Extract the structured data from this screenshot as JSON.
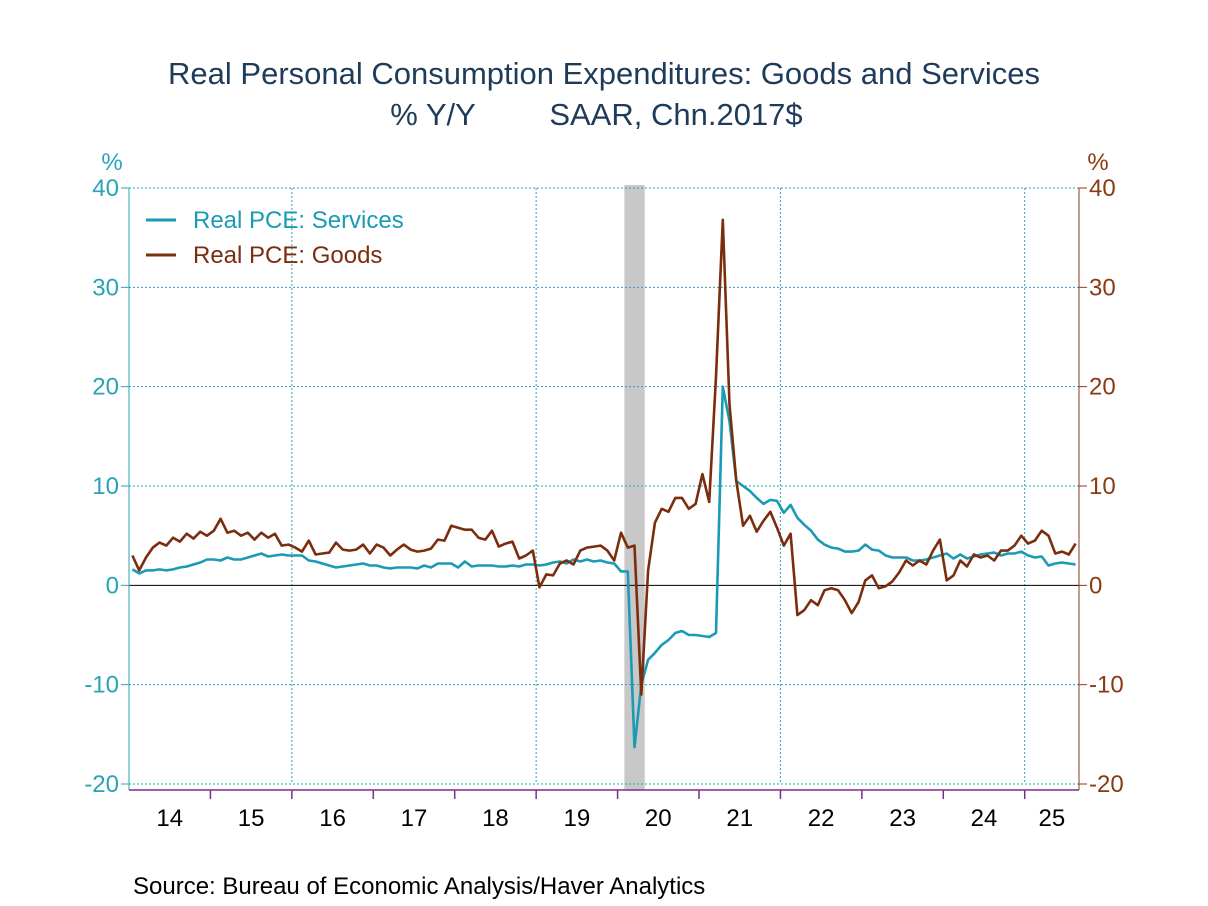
{
  "chart_data": {
    "type": "line",
    "title_line1": "Real Personal Consumption Expenditures: Goods and Services",
    "title_line2_left": "% Y/Y",
    "title_line2_right": "SAAR, Chn.2017$",
    "left_axis_unit": "%",
    "right_axis_unit": "%",
    "ylim": [
      -20,
      40
    ],
    "yticks": [
      40,
      30,
      20,
      10,
      0,
      -10,
      -20
    ],
    "year_labels": [
      "14",
      "15",
      "16",
      "17",
      "18",
      "19",
      "20",
      "21",
      "22",
      "23",
      "24",
      "25"
    ],
    "x_start": "2014-01",
    "x_end": "2025-08",
    "recession": {
      "start": "2020-02",
      "end": "2020-04"
    },
    "grid": true,
    "legend_position": "top-left",
    "source": "Source:  Bureau of Economic Analysis/Haver Analytics",
    "colors": {
      "services": "#1a9bb5",
      "goods": "#7a2e0e",
      "left_axis": "#2aa3b8",
      "right_axis": "#8a3a12",
      "bottom_axis": "#7b2d8e",
      "grid": "#2aa3b8",
      "recession": "#c8c8c8",
      "title": "#1f3b5a"
    },
    "series": [
      {
        "name": "Real PCE: Services",
        "key": "services",
        "points": [
          [
            "2014-01",
            1.6
          ],
          [
            "2014-02",
            1.2
          ],
          [
            "2014-03",
            1.5
          ],
          [
            "2014-04",
            1.5
          ],
          [
            "2014-05",
            1.6
          ],
          [
            "2014-06",
            1.5
          ],
          [
            "2014-07",
            1.6
          ],
          [
            "2014-08",
            1.8
          ],
          [
            "2014-09",
            1.9
          ],
          [
            "2014-10",
            2.1
          ],
          [
            "2014-11",
            2.3
          ],
          [
            "2014-12",
            2.6
          ],
          [
            "2015-01",
            2.6
          ],
          [
            "2015-02",
            2.5
          ],
          [
            "2015-03",
            2.8
          ],
          [
            "2015-04",
            2.6
          ],
          [
            "2015-05",
            2.6
          ],
          [
            "2015-06",
            2.8
          ],
          [
            "2015-07",
            3.0
          ],
          [
            "2015-08",
            3.2
          ],
          [
            "2015-09",
            2.9
          ],
          [
            "2015-10",
            3.0
          ],
          [
            "2015-11",
            3.1
          ],
          [
            "2015-12",
            3.0
          ],
          [
            "2016-01",
            3.0
          ],
          [
            "2016-02",
            3.0
          ],
          [
            "2016-03",
            2.5
          ],
          [
            "2016-04",
            2.4
          ],
          [
            "2016-05",
            2.2
          ],
          [
            "2016-06",
            2.0
          ],
          [
            "2016-07",
            1.8
          ],
          [
            "2016-08",
            1.9
          ],
          [
            "2016-09",
            2.0
          ],
          [
            "2016-10",
            2.1
          ],
          [
            "2016-11",
            2.2
          ],
          [
            "2016-12",
            2.0
          ],
          [
            "2017-01",
            2.0
          ],
          [
            "2017-02",
            1.8
          ],
          [
            "2017-03",
            1.7
          ],
          [
            "2017-04",
            1.8
          ],
          [
            "2017-05",
            1.8
          ],
          [
            "2017-06",
            1.8
          ],
          [
            "2017-07",
            1.7
          ],
          [
            "2017-08",
            2.0
          ],
          [
            "2017-09",
            1.8
          ],
          [
            "2017-10",
            2.2
          ],
          [
            "2017-11",
            2.2
          ],
          [
            "2017-12",
            2.2
          ],
          [
            "2018-01",
            1.8
          ],
          [
            "2018-02",
            2.4
          ],
          [
            "2018-03",
            1.9
          ],
          [
            "2018-04",
            2.0
          ],
          [
            "2018-05",
            2.0
          ],
          [
            "2018-06",
            2.0
          ],
          [
            "2018-07",
            1.9
          ],
          [
            "2018-08",
            1.9
          ],
          [
            "2018-09",
            2.0
          ],
          [
            "2018-10",
            1.9
          ],
          [
            "2018-11",
            2.1
          ],
          [
            "2018-12",
            2.1
          ],
          [
            "2019-01",
            2.0
          ],
          [
            "2019-02",
            2.1
          ],
          [
            "2019-03",
            2.3
          ],
          [
            "2019-04",
            2.4
          ],
          [
            "2019-05",
            2.2
          ],
          [
            "2019-06",
            2.6
          ],
          [
            "2019-07",
            2.4
          ],
          [
            "2019-08",
            2.6
          ],
          [
            "2019-09",
            2.4
          ],
          [
            "2019-10",
            2.5
          ],
          [
            "2019-11",
            2.3
          ],
          [
            "2019-12",
            2.2
          ],
          [
            "2020-01",
            1.4
          ],
          [
            "2020-02",
            1.4
          ],
          [
            "2020-03",
            -16.3
          ],
          [
            "2020-04",
            -10.0
          ],
          [
            "2020-05",
            -7.5
          ],
          [
            "2020-06",
            -6.8
          ],
          [
            "2020-07",
            -6.0
          ],
          [
            "2020-08",
            -5.5
          ],
          [
            "2020-09",
            -4.8
          ],
          [
            "2020-10",
            -4.6
          ],
          [
            "2020-11",
            -5.0
          ],
          [
            "2020-12",
            -5.0
          ],
          [
            "2021-01",
            -5.1
          ],
          [
            "2021-02",
            -5.2
          ],
          [
            "2021-03",
            -4.8
          ],
          [
            "2021-04",
            20.0
          ],
          [
            "2021-05",
            16.5
          ],
          [
            "2021-06",
            10.5
          ],
          [
            "2021-07",
            10.0
          ],
          [
            "2021-08",
            9.5
          ],
          [
            "2021-09",
            8.8
          ],
          [
            "2021-10",
            8.2
          ],
          [
            "2021-11",
            8.6
          ],
          [
            "2021-12",
            8.5
          ],
          [
            "2022-01",
            7.3
          ],
          [
            "2022-02",
            8.1
          ],
          [
            "2022-03",
            6.8
          ],
          [
            "2022-04",
            6.1
          ],
          [
            "2022-05",
            5.5
          ],
          [
            "2022-06",
            4.6
          ],
          [
            "2022-07",
            4.1
          ],
          [
            "2022-08",
            3.8
          ],
          [
            "2022-09",
            3.7
          ],
          [
            "2022-10",
            3.4
          ],
          [
            "2022-11",
            3.4
          ],
          [
            "2022-12",
            3.5
          ],
          [
            "2023-01",
            4.1
          ],
          [
            "2023-02",
            3.6
          ],
          [
            "2023-03",
            3.5
          ],
          [
            "2023-04",
            3.0
          ],
          [
            "2023-05",
            2.8
          ],
          [
            "2023-06",
            2.8
          ],
          [
            "2023-07",
            2.8
          ],
          [
            "2023-08",
            2.5
          ],
          [
            "2023-09",
            2.5
          ],
          [
            "2023-10",
            2.6
          ],
          [
            "2023-11",
            2.8
          ],
          [
            "2023-12",
            3.0
          ],
          [
            "2024-01",
            3.2
          ],
          [
            "2024-02",
            2.7
          ],
          [
            "2024-03",
            3.1
          ],
          [
            "2024-04",
            2.7
          ],
          [
            "2024-05",
            2.9
          ],
          [
            "2024-06",
            3.1
          ],
          [
            "2024-07",
            3.2
          ],
          [
            "2024-08",
            3.3
          ],
          [
            "2024-09",
            3.0
          ],
          [
            "2024-10",
            3.2
          ],
          [
            "2024-11",
            3.2
          ],
          [
            "2024-12",
            3.4
          ],
          [
            "2025-01",
            3.0
          ],
          [
            "2025-02",
            2.8
          ],
          [
            "2025-03",
            2.9
          ],
          [
            "2025-04",
            2.0
          ],
          [
            "2025-05",
            2.2
          ],
          [
            "2025-06",
            2.3
          ],
          [
            "2025-07",
            2.2
          ],
          [
            "2025-08",
            2.1
          ]
        ]
      },
      {
        "name": "Real PCE: Goods",
        "key": "goods",
        "points": [
          [
            "2014-01",
            3.0
          ],
          [
            "2014-02",
            1.5
          ],
          [
            "2014-03",
            2.8
          ],
          [
            "2014-04",
            3.8
          ],
          [
            "2014-05",
            4.3
          ],
          [
            "2014-06",
            4.0
          ],
          [
            "2014-07",
            4.8
          ],
          [
            "2014-08",
            4.4
          ],
          [
            "2014-09",
            5.2
          ],
          [
            "2014-10",
            4.7
          ],
          [
            "2014-11",
            5.4
          ],
          [
            "2014-12",
            5.0
          ],
          [
            "2015-01",
            5.5
          ],
          [
            "2015-02",
            6.7
          ],
          [
            "2015-03",
            5.3
          ],
          [
            "2015-04",
            5.5
          ],
          [
            "2015-05",
            5.0
          ],
          [
            "2015-06",
            5.3
          ],
          [
            "2015-07",
            4.6
          ],
          [
            "2015-08",
            5.3
          ],
          [
            "2015-09",
            4.8
          ],
          [
            "2015-10",
            5.2
          ],
          [
            "2015-11",
            4.0
          ],
          [
            "2015-12",
            4.1
          ],
          [
            "2016-01",
            3.8
          ],
          [
            "2016-02",
            3.4
          ],
          [
            "2016-03",
            4.5
          ],
          [
            "2016-04",
            3.1
          ],
          [
            "2016-05",
            3.2
          ],
          [
            "2016-06",
            3.3
          ],
          [
            "2016-07",
            4.3
          ],
          [
            "2016-08",
            3.6
          ],
          [
            "2016-09",
            3.5
          ],
          [
            "2016-10",
            3.6
          ],
          [
            "2016-11",
            4.1
          ],
          [
            "2016-12",
            3.2
          ],
          [
            "2017-01",
            4.1
          ],
          [
            "2017-02",
            3.8
          ],
          [
            "2017-03",
            3.0
          ],
          [
            "2017-04",
            3.6
          ],
          [
            "2017-05",
            4.1
          ],
          [
            "2017-06",
            3.6
          ],
          [
            "2017-07",
            3.4
          ],
          [
            "2017-08",
            3.5
          ],
          [
            "2017-09",
            3.7
          ],
          [
            "2017-10",
            4.6
          ],
          [
            "2017-11",
            4.5
          ],
          [
            "2017-12",
            6.0
          ],
          [
            "2018-01",
            5.8
          ],
          [
            "2018-02",
            5.6
          ],
          [
            "2018-03",
            5.6
          ],
          [
            "2018-04",
            4.8
          ],
          [
            "2018-05",
            4.6
          ],
          [
            "2018-06",
            5.5
          ],
          [
            "2018-07",
            3.9
          ],
          [
            "2018-08",
            4.2
          ],
          [
            "2018-09",
            4.4
          ],
          [
            "2018-10",
            2.7
          ],
          [
            "2018-11",
            3.0
          ],
          [
            "2018-12",
            3.5
          ],
          [
            "2019-01",
            -0.2
          ],
          [
            "2019-02",
            1.1
          ],
          [
            "2019-03",
            1.0
          ],
          [
            "2019-04",
            2.2
          ],
          [
            "2019-05",
            2.5
          ],
          [
            "2019-06",
            2.1
          ],
          [
            "2019-07",
            3.5
          ],
          [
            "2019-08",
            3.8
          ],
          [
            "2019-09",
            3.9
          ],
          [
            "2019-10",
            4.0
          ],
          [
            "2019-11",
            3.5
          ],
          [
            "2019-12",
            2.5
          ],
          [
            "2020-01",
            5.3
          ],
          [
            "2020-02",
            3.8
          ],
          [
            "2020-03",
            4.0
          ],
          [
            "2020-04",
            -11.0
          ],
          [
            "2020-05",
            1.5
          ],
          [
            "2020-06",
            6.3
          ],
          [
            "2020-07",
            7.7
          ],
          [
            "2020-08",
            7.4
          ],
          [
            "2020-09",
            8.8
          ],
          [
            "2020-10",
            8.8
          ],
          [
            "2020-11",
            7.7
          ],
          [
            "2020-12",
            8.2
          ],
          [
            "2021-01",
            11.2
          ],
          [
            "2021-02",
            8.4
          ],
          [
            "2021-03",
            21.0
          ],
          [
            "2021-04",
            36.8
          ],
          [
            "2021-05",
            18.2
          ],
          [
            "2021-06",
            10.5
          ],
          [
            "2021-07",
            6.0
          ],
          [
            "2021-08",
            7.0
          ],
          [
            "2021-09",
            5.4
          ],
          [
            "2021-10",
            6.5
          ],
          [
            "2021-11",
            7.4
          ],
          [
            "2021-12",
            5.8
          ],
          [
            "2022-01",
            4.0
          ],
          [
            "2022-02",
            5.2
          ],
          [
            "2022-03",
            -3.0
          ],
          [
            "2022-04",
            -2.5
          ],
          [
            "2022-05",
            -1.5
          ],
          [
            "2022-06",
            -2.0
          ],
          [
            "2022-07",
            -0.5
          ],
          [
            "2022-08",
            -0.3
          ],
          [
            "2022-09",
            -0.5
          ],
          [
            "2022-10",
            -1.5
          ],
          [
            "2022-11",
            -2.8
          ],
          [
            "2022-12",
            -1.7
          ],
          [
            "2023-01",
            0.5
          ],
          [
            "2023-02",
            1.0
          ],
          [
            "2023-03",
            -0.3
          ],
          [
            "2023-04",
            -0.1
          ],
          [
            "2023-05",
            0.4
          ],
          [
            "2023-06",
            1.3
          ],
          [
            "2023-07",
            2.5
          ],
          [
            "2023-08",
            2.0
          ],
          [
            "2023-09",
            2.5
          ],
          [
            "2023-10",
            2.1
          ],
          [
            "2023-11",
            3.5
          ],
          [
            "2023-12",
            4.6
          ],
          [
            "2024-01",
            0.5
          ],
          [
            "2024-02",
            1.0
          ],
          [
            "2024-03",
            2.5
          ],
          [
            "2024-04",
            1.9
          ],
          [
            "2024-05",
            3.1
          ],
          [
            "2024-06",
            2.8
          ],
          [
            "2024-07",
            3.0
          ],
          [
            "2024-08",
            2.5
          ],
          [
            "2024-09",
            3.5
          ],
          [
            "2024-10",
            3.5
          ],
          [
            "2024-11",
            4.0
          ],
          [
            "2024-12",
            5.0
          ],
          [
            "2025-01",
            4.2
          ],
          [
            "2025-02",
            4.5
          ],
          [
            "2025-03",
            5.5
          ],
          [
            "2025-04",
            5.0
          ],
          [
            "2025-05",
            3.2
          ],
          [
            "2025-06",
            3.4
          ],
          [
            "2025-07",
            3.1
          ],
          [
            "2025-08",
            4.2
          ]
        ]
      }
    ]
  }
}
